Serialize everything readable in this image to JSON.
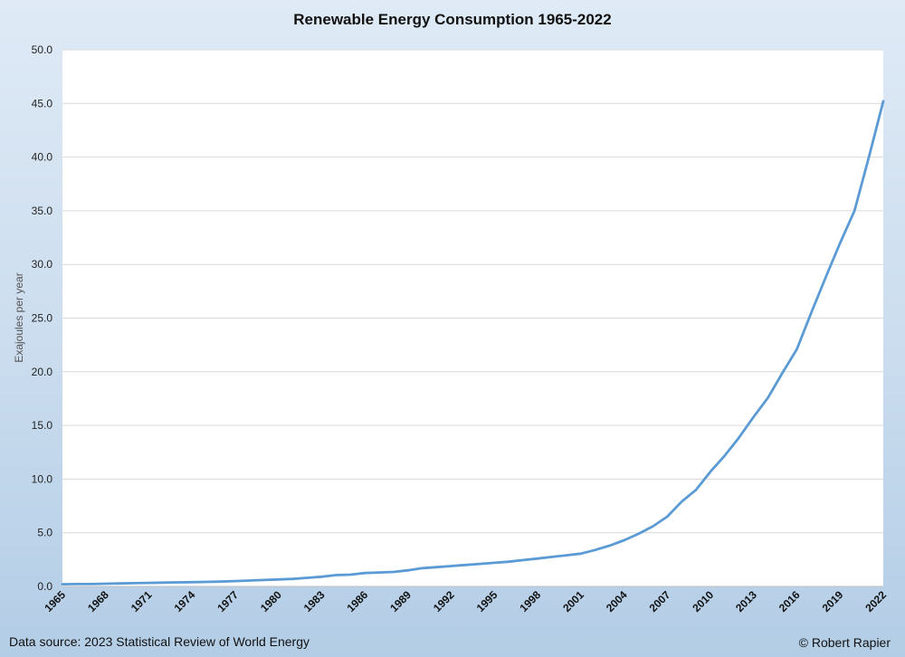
{
  "chart_data": {
    "type": "line",
    "title": "Renewable Energy Consumption 1965-2022",
    "ylabel": "Exajoules per year",
    "xlabel": "",
    "ylim": [
      0,
      50
    ],
    "yticks": [
      "0.0",
      "5.0",
      "10.0",
      "15.0",
      "20.0",
      "25.0",
      "30.0",
      "35.0",
      "40.0",
      "45.0",
      "50.0"
    ],
    "xticks": [
      "1965",
      "1968",
      "1971",
      "1974",
      "1977",
      "1980",
      "1983",
      "1986",
      "1989",
      "1992",
      "1995",
      "1998",
      "2001",
      "2004",
      "2007",
      "2010",
      "2013",
      "2016",
      "2019",
      "2022"
    ],
    "grid": true,
    "x": [
      1965,
      1966,
      1967,
      1968,
      1969,
      1970,
      1971,
      1972,
      1973,
      1974,
      1975,
      1976,
      1977,
      1978,
      1979,
      1980,
      1981,
      1982,
      1983,
      1984,
      1985,
      1986,
      1987,
      1988,
      1989,
      1990,
      1991,
      1992,
      1993,
      1994,
      1995,
      1996,
      1997,
      1998,
      1999,
      2000,
      2001,
      2002,
      2003,
      2004,
      2005,
      2006,
      2007,
      2008,
      2009,
      2010,
      2011,
      2012,
      2013,
      2014,
      2015,
      2016,
      2017,
      2018,
      2019,
      2020,
      2021,
      2022
    ],
    "series": [
      {
        "name": "",
        "color": "#5b9bd5",
        "values": [
          0.2,
          0.22,
          0.22,
          0.25,
          0.28,
          0.3,
          0.33,
          0.35,
          0.38,
          0.4,
          0.42,
          0.45,
          0.5,
          0.55,
          0.6,
          0.65,
          0.7,
          0.8,
          0.9,
          1.05,
          1.1,
          1.25,
          1.3,
          1.35,
          1.5,
          1.7,
          1.8,
          1.9,
          2.0,
          2.1,
          2.2,
          2.3,
          2.45,
          2.6,
          2.75,
          2.9,
          3.05,
          3.4,
          3.8,
          4.3,
          4.9,
          5.6,
          6.5,
          7.9,
          9.0,
          10.7,
          12.2,
          13.9,
          15.8,
          17.6,
          19.9,
          22.1,
          25.5,
          28.8,
          32.0,
          35.0,
          40.0,
          45.2
        ]
      }
    ]
  },
  "footer": {
    "source": "Data source: 2023 Statistical Review of World Energy",
    "credit": "© Robert Rapier"
  }
}
